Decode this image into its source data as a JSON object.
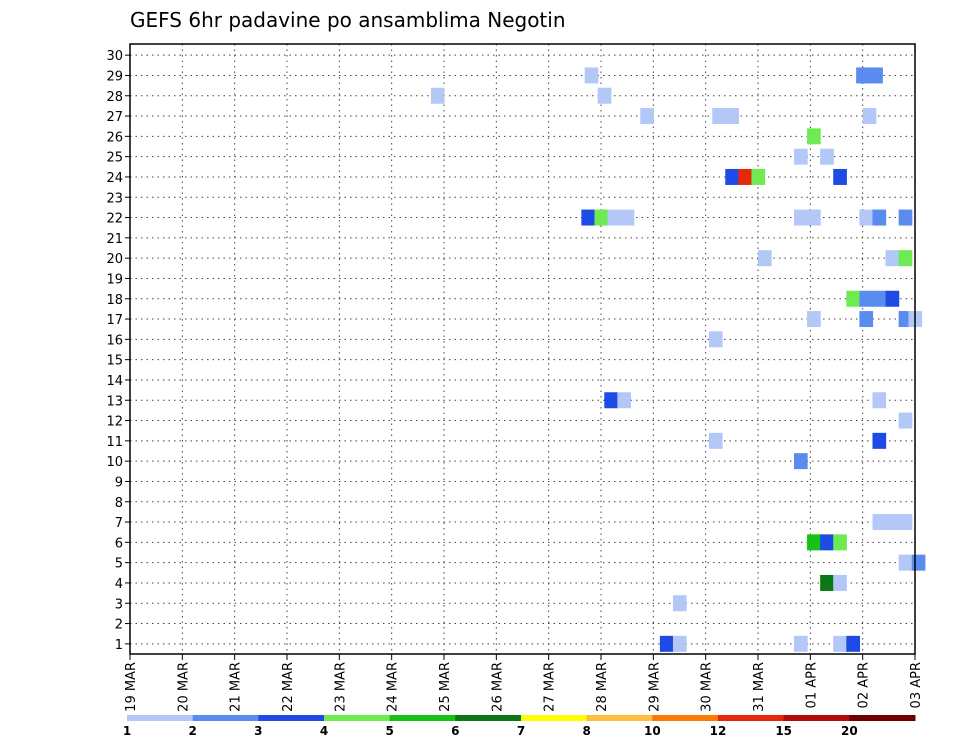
{
  "chart_data": {
    "type": "heatmap",
    "title": "GEFS 6hr padavine po ansamblima Negotin",
    "xlabel": "",
    "ylabel": "",
    "x_ticks": [
      "19 MAR",
      "20 MAR",
      "21 MAR",
      "22 MAR",
      "23 MAR",
      "24 MAR",
      "25 MAR",
      "26 MAR",
      "27 MAR",
      "28 MAR",
      "29 MAR",
      "30 MAR",
      "31 MAR",
      "01 APR",
      "02 APR",
      "03 APR"
    ],
    "y_ticks": [
      "1",
      "2",
      "3",
      "4",
      "5",
      "6",
      "7",
      "8",
      "9",
      "10",
      "11",
      "12",
      "13",
      "14",
      "15",
      "16",
      "17",
      "18",
      "19",
      "20",
      "21",
      "22",
      "23",
      "24",
      "25",
      "26",
      "27",
      "28",
      "29",
      "30"
    ],
    "xlim": [
      0,
      60
    ],
    "ylim": [
      0.5,
      30
    ],
    "grid": true,
    "colorbar": {
      "labels": [
        "1",
        "2",
        "3",
        "4",
        "5",
        "6",
        "7",
        "8",
        "10",
        "12",
        "15",
        "20"
      ],
      "colors": [
        "#b4c8f8",
        "#5a8cf0",
        "#1e4be6",
        "#6eeb50",
        "#14c314",
        "#0a7814",
        "#ffff00",
        "#ffbe3c",
        "#ff7800",
        "#e6280a",
        "#b40a0a",
        "#6e0000"
      ]
    },
    "cells_note_levels": "cell value = precipitation class index into colorbar.colors (0 = 1..2 mm)",
    "cells": [
      {
        "t": 34.75,
        "m": 29,
        "l": 0
      },
      {
        "t": 55.5,
        "m": 29,
        "l": 1
      },
      {
        "t": 56.5,
        "m": 29,
        "l": 1
      },
      {
        "t": 23,
        "m": 28,
        "l": 0
      },
      {
        "t": 35.75,
        "m": 28,
        "l": 0
      },
      {
        "t": 39,
        "m": 27,
        "l": 0
      },
      {
        "t": 44.5,
        "m": 27,
        "l": 0
      },
      {
        "t": 45.5,
        "m": 27,
        "l": 0
      },
      {
        "t": 56,
        "m": 27,
        "l": 0
      },
      {
        "t": 51.75,
        "m": 26,
        "l": 3
      },
      {
        "t": 50.75,
        "m": 25,
        "l": 0
      },
      {
        "t": 52.75,
        "m": 25,
        "l": 0
      },
      {
        "t": 45.5,
        "m": 24,
        "l": 2
      },
      {
        "t": 46.5,
        "m": 24,
        "l": 9
      },
      {
        "t": 47.5,
        "m": 24,
        "l": 3
      },
      {
        "t": 53.75,
        "m": 24,
        "l": 2
      },
      {
        "t": 34.5,
        "m": 22,
        "l": 2
      },
      {
        "t": 35.5,
        "m": 22,
        "l": 3
      },
      {
        "t": 36.5,
        "m": 22,
        "l": 0
      },
      {
        "t": 37.5,
        "m": 22,
        "l": 0
      },
      {
        "t": 50.75,
        "m": 22,
        "l": 0
      },
      {
        "t": 51.75,
        "m": 22,
        "l": 0
      },
      {
        "t": 55.75,
        "m": 22,
        "l": 0
      },
      {
        "t": 56.75,
        "m": 22,
        "l": 1
      },
      {
        "t": 58.75,
        "m": 22,
        "l": 1
      },
      {
        "t": 48,
        "m": 20,
        "l": 0
      },
      {
        "t": 57.75,
        "m": 20,
        "l": 0
      },
      {
        "t": 58.75,
        "m": 20,
        "l": 3
      },
      {
        "t": 54.75,
        "m": 18,
        "l": 3
      },
      {
        "t": 55.75,
        "m": 18,
        "l": 1
      },
      {
        "t": 56.75,
        "m": 18,
        "l": 1
      },
      {
        "t": 57.75,
        "m": 18,
        "l": 2
      },
      {
        "t": 51.75,
        "m": 17,
        "l": 0
      },
      {
        "t": 55.75,
        "m": 17,
        "l": 1
      },
      {
        "t": 58.75,
        "m": 17,
        "l": 1
      },
      {
        "t": 59.5,
        "m": 17,
        "l": 0
      },
      {
        "t": 44.25,
        "m": 16,
        "l": 0
      },
      {
        "t": 36.25,
        "m": 13,
        "l": 2
      },
      {
        "t": 37.25,
        "m": 13,
        "l": 0
      },
      {
        "t": 56.75,
        "m": 13,
        "l": 0
      },
      {
        "t": 58.75,
        "m": 12,
        "l": 0
      },
      {
        "t": 44.25,
        "m": 11,
        "l": 0
      },
      {
        "t": 56.75,
        "m": 11,
        "l": 2
      },
      {
        "t": 50.75,
        "m": 10,
        "l": 1
      },
      {
        "t": 56.75,
        "m": 7,
        "l": 0
      },
      {
        "t": 57.75,
        "m": 7,
        "l": 0
      },
      {
        "t": 58.75,
        "m": 7,
        "l": 0
      },
      {
        "t": 51.75,
        "m": 6,
        "l": 4
      },
      {
        "t": 52.75,
        "m": 6,
        "l": 2
      },
      {
        "t": 53.75,
        "m": 6,
        "l": 3
      },
      {
        "t": 58.75,
        "m": 5,
        "l": 0
      },
      {
        "t": 59.75,
        "m": 5,
        "l": 1
      },
      {
        "t": 52.75,
        "m": 4,
        "l": 5
      },
      {
        "t": 53.75,
        "m": 4,
        "l": 0
      },
      {
        "t": 41.5,
        "m": 3,
        "l": 0
      },
      {
        "t": 40.5,
        "m": 1,
        "l": 2
      },
      {
        "t": 41.5,
        "m": 1,
        "l": 0
      },
      {
        "t": 50.75,
        "m": 1,
        "l": 0
      },
      {
        "t": 53.75,
        "m": 1,
        "l": 0
      },
      {
        "t": 54.75,
        "m": 1,
        "l": 2
      }
    ]
  }
}
